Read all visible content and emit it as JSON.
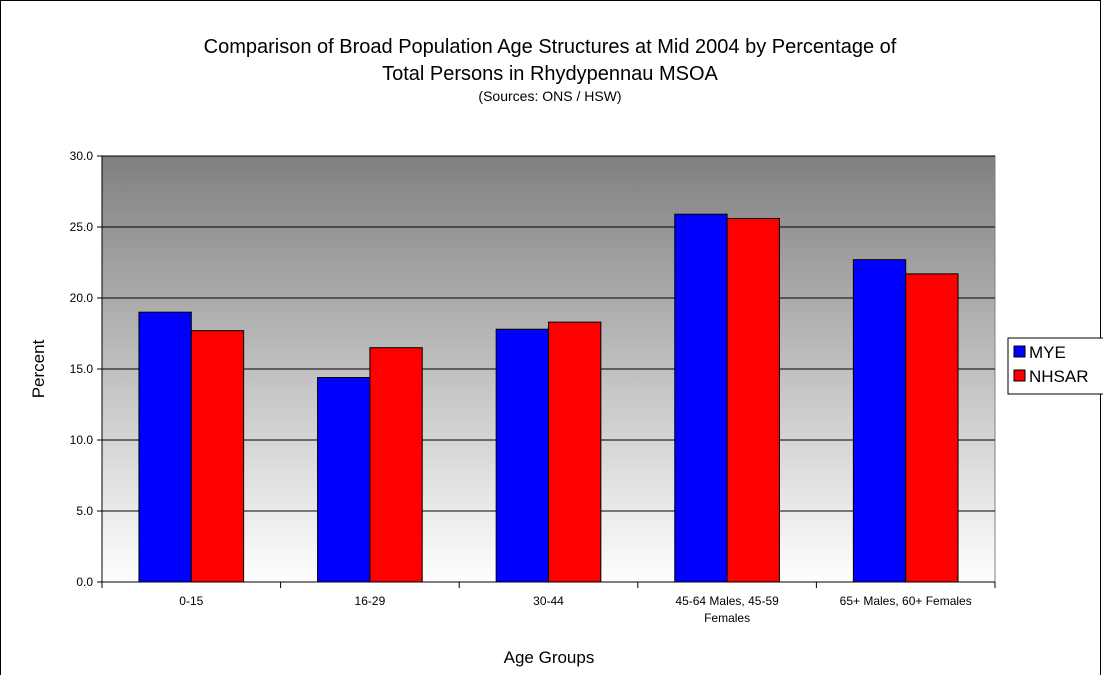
{
  "chart_data": {
    "type": "bar",
    "title_line1": "Comparison of Broad Population Age Structures at Mid 2004 by Percentage of",
    "title_line2": "Total Persons in Rhydypennau MSOA",
    "subtitle": "(Sources: ONS / HSW)",
    "xlabel": "Age Groups",
    "ylabel": "Percent",
    "ylim": [
      0,
      30
    ],
    "yticks": [
      "0.0",
      "5.0",
      "10.0",
      "15.0",
      "20.0",
      "25.0",
      "30.0"
    ],
    "categories": [
      [
        "0-15"
      ],
      [
        "16-29"
      ],
      [
        "30-44"
      ],
      [
        "45-64 Males, 45-59",
        "Females"
      ],
      [
        "65+ Males, 60+ Females"
      ]
    ],
    "series": [
      {
        "name": "MYE",
        "color": "#0000ff",
        "values": [
          19.0,
          14.4,
          17.8,
          25.9,
          22.7
        ]
      },
      {
        "name": "NHSAR",
        "color": "#ff0000",
        "values": [
          17.7,
          16.5,
          18.3,
          25.6,
          21.7
        ]
      }
    ],
    "grid": true,
    "legend": "right",
    "background_gradient": [
      "#808080",
      "#ffffff"
    ]
  }
}
